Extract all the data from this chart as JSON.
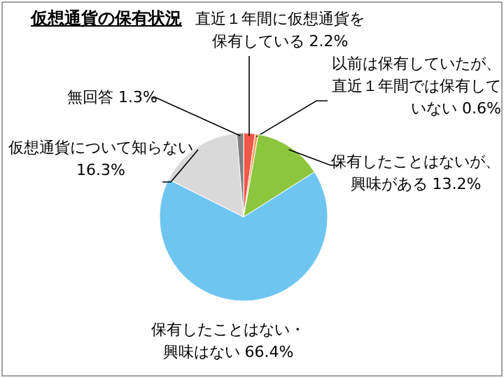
{
  "chart_data": {
    "type": "pie",
    "title": "仮想通貨の保有状況",
    "categories": [
      "直近１年間に仮想通貨を保有している",
      "以前は保有していたが、直近１年間では保有していない",
      "保有したことはないが、興味がある",
      "保有したことはない・興味はない",
      "仮想通貨について知らない",
      "無回答"
    ],
    "values": [
      2.2,
      0.6,
      13.2,
      66.4,
      16.3,
      1.3
    ],
    "colors": [
      "#f0584a",
      "#f5a05a",
      "#8cc63f",
      "#6ec6f0",
      "#d9d9d9",
      "#808080"
    ],
    "value_labels": [
      "2.2%",
      "0.6%",
      "13.2%",
      "66.4%",
      "16.3%",
      "1.3%"
    ]
  }
}
